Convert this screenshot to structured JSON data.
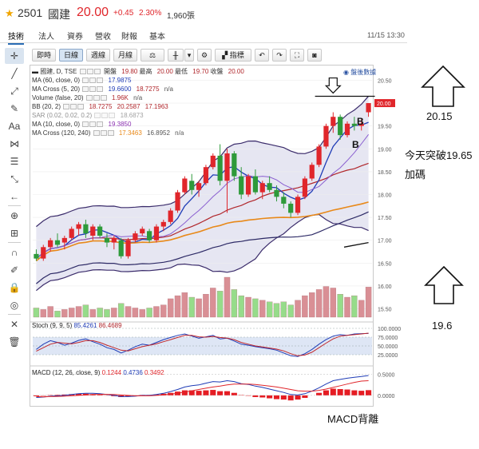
{
  "header": {
    "code": "2501",
    "name": "國建",
    "price": "20.00",
    "change": "+0.45",
    "change_pct": "2.30%",
    "volume": "1,960張"
  },
  "tabs": [
    {
      "label": "技術",
      "active": true
    },
    {
      "label": "法人",
      "active": false
    },
    {
      "label": "資券",
      "active": false
    },
    {
      "label": "營收",
      "active": false
    },
    {
      "label": "財報",
      "active": false
    },
    {
      "label": "基本",
      "active": false
    }
  ],
  "datetime": "11/15 13:30",
  "toolbar": {
    "realtime": "即時",
    "daily": "日線",
    "weekly": "週線",
    "monthly": "月線",
    "indicators": "指標"
  },
  "after_hours_label": "盤後數據",
  "legend": {
    "title": "國建, D, TSE",
    "ohlc": {
      "open_label": "開盤",
      "open": "19.80",
      "high_label": "最高",
      "high": "20.00",
      "low_label": "最低",
      "low": "19.70",
      "close_label": "收盤",
      "close": "20.00"
    },
    "ma60": {
      "label": "MA (60, close, 0)",
      "value": "17.9875"
    },
    "macross": {
      "label": "MA Cross (5, 20)",
      "v1": "19.6600",
      "v2": "18.7275",
      "v3": "n/a"
    },
    "volume": {
      "label": "Volume (false, 20)",
      "value": "1.96K",
      "v2": "n/a"
    },
    "bb": {
      "label": "BB (20, 2)",
      "v1": "18.7275",
      "v2": "20.2587",
      "v3": "17.1963"
    },
    "sar": {
      "label": "SAR (0.02, 0.02, 0.2)",
      "value": "18.6873"
    },
    "ma10": {
      "label": "MA (10, close, 0)",
      "value": "19.3850"
    },
    "macross2": {
      "label": "MA Cross (120, 240)",
      "v1": "17.3463",
      "v2": "16.8952",
      "v3": "n/a"
    }
  },
  "stoch_legend": {
    "label": "Stoch (9, 9, 5)",
    "v1": "85.4261",
    "v2": "86.4689"
  },
  "macd_legend": {
    "label": "MACD (12, 26, close, 9)",
    "v1": "0.1244",
    "v2": "0.4736",
    "v3": "0.3492"
  },
  "annotations": {
    "upper_target": "20.15",
    "breakout_note": "今天突破19.65",
    "add_position": "加碼",
    "lower_target": "19.6",
    "macd_divergence": "MACD背離",
    "b_mark": "B"
  },
  "colors": {
    "up": "#e0262b",
    "down": "#2e9a3a",
    "bb_fill": "#ddddee",
    "bb_line": "#3b2c6b",
    "ma_blue": "#1f3cb6",
    "ma_red": "#b0262b",
    "ma_orange": "#e8891a",
    "vol_up": "#d98f95",
    "vol_down": "#96dc8a"
  },
  "chart_data": {
    "type": "candlestick",
    "price_axis": {
      "ticks": [
        20.5,
        20.0,
        19.5,
        19.0,
        18.5,
        18.0,
        17.5,
        17.0,
        16.5,
        16.0,
        15.5
      ],
      "range": [
        15.3,
        20.7
      ]
    },
    "last_price_label": "20.00",
    "candles": [
      [
        16.7,
        16.8,
        16.55,
        16.6
      ],
      [
        16.6,
        16.9,
        16.55,
        16.85
      ],
      [
        16.85,
        17.05,
        16.75,
        17.0
      ],
      [
        17.0,
        17.15,
        16.85,
        16.9
      ],
      [
        16.95,
        17.1,
        16.8,
        17.05
      ],
      [
        17.05,
        17.3,
        17.0,
        17.25
      ],
      [
        17.25,
        17.4,
        17.1,
        17.35
      ],
      [
        17.35,
        17.45,
        17.05,
        17.15
      ],
      [
        17.1,
        17.35,
        17.0,
        17.3
      ],
      [
        17.3,
        17.35,
        17.05,
        17.1
      ],
      [
        17.05,
        17.15,
        16.85,
        16.95
      ],
      [
        16.95,
        17.1,
        16.8,
        17.05
      ],
      [
        17.0,
        17.05,
        16.6,
        16.65
      ],
      [
        16.65,
        17.05,
        16.6,
        17.0
      ],
      [
        17.0,
        17.2,
        16.95,
        17.15
      ],
      [
        17.15,
        17.3,
        17.1,
        17.25
      ],
      [
        17.2,
        17.25,
        16.95,
        17.0
      ],
      [
        17.0,
        17.35,
        16.95,
        17.3
      ],
      [
        17.3,
        17.45,
        17.2,
        17.4
      ],
      [
        17.4,
        17.7,
        17.35,
        17.65
      ],
      [
        17.65,
        18.1,
        17.6,
        18.05
      ],
      [
        18.05,
        18.4,
        18.0,
        18.35
      ],
      [
        18.3,
        18.45,
        18.0,
        18.1
      ],
      [
        18.1,
        18.3,
        17.95,
        18.25
      ],
      [
        18.25,
        18.65,
        18.2,
        18.6
      ],
      [
        18.6,
        18.9,
        18.55,
        18.85
      ],
      [
        18.85,
        19.1,
        18.2,
        18.3
      ],
      [
        18.3,
        19.0,
        17.6,
        18.9
      ],
      [
        18.9,
        18.95,
        18.3,
        18.4
      ],
      [
        18.4,
        18.6,
        17.9,
        18.0
      ],
      [
        18.0,
        18.45,
        17.95,
        18.4
      ],
      [
        18.4,
        18.55,
        18.0,
        18.05
      ],
      [
        18.05,
        18.3,
        17.9,
        18.25
      ],
      [
        18.25,
        18.4,
        18.05,
        18.1
      ],
      [
        18.1,
        18.2,
        17.85,
        17.95
      ],
      [
        17.95,
        18.05,
        17.7,
        17.8
      ],
      [
        17.8,
        17.85,
        17.5,
        17.6
      ],
      [
        17.6,
        18.0,
        17.55,
        17.95
      ],
      [
        17.95,
        18.4,
        17.9,
        18.35
      ],
      [
        18.35,
        18.7,
        18.3,
        18.65
      ],
      [
        18.65,
        19.1,
        18.6,
        19.05
      ],
      [
        19.05,
        19.55,
        19.0,
        19.5
      ],
      [
        19.5,
        19.8,
        19.35,
        19.7
      ],
      [
        19.7,
        19.75,
        19.2,
        19.3
      ],
      [
        19.3,
        19.6,
        19.25,
        19.55
      ],
      [
        19.55,
        19.7,
        19.4,
        19.5
      ],
      [
        19.5,
        19.65,
        19.4,
        19.55
      ],
      [
        19.8,
        20.0,
        19.7,
        20.0
      ]
    ],
    "volumes": [
      0.6,
      0.5,
      0.7,
      0.4,
      0.5,
      0.6,
      0.7,
      0.8,
      0.5,
      0.6,
      0.5,
      0.6,
      0.9,
      0.7,
      0.6,
      0.5,
      0.6,
      0.7,
      0.8,
      1.2,
      1.4,
      1.6,
      1.3,
      1.2,
      1.5,
      1.9,
      1.7,
      2.6,
      1.8,
      1.4,
      1.3,
      1.2,
      1.1,
      1.0,
      0.9,
      1.0,
      0.8,
      1.1,
      1.4,
      1.6,
      1.8,
      2.0,
      1.9,
      1.5,
      1.3,
      1.4,
      1.1,
      1.96
    ],
    "stoch_axis": {
      "ticks": [
        100,
        75,
        50,
        25
      ],
      "range": [
        0,
        100
      ]
    },
    "stoch_k": [
      40,
      55,
      65,
      60,
      52,
      58,
      66,
      70,
      62,
      55,
      45,
      40,
      30,
      38,
      48,
      55,
      52,
      60,
      68,
      74,
      80,
      84,
      78,
      72,
      76,
      80,
      70,
      72,
      64,
      55,
      52,
      48,
      45,
      42,
      38,
      30,
      22,
      20,
      28,
      40,
      55,
      68,
      78,
      82,
      80,
      84,
      85,
      85.43
    ],
    "stoch_d": [
      35,
      45,
      55,
      60,
      58,
      56,
      60,
      65,
      65,
      60,
      52,
      45,
      38,
      36,
      42,
      48,
      52,
      56,
      62,
      68,
      74,
      80,
      80,
      76,
      75,
      77,
      74,
      72,
      68,
      60,
      55,
      50,
      47,
      44,
      41,
      36,
      28,
      22,
      24,
      32,
      45,
      58,
      70,
      78,
      80,
      82,
      84,
      86.47
    ],
    "macd_axis": {
      "ticks": [
        0.5,
        0.0
      ],
      "range": [
        -0.25,
        0.55
      ]
    },
    "macd_dif": [
      -0.05,
      -0.04,
      -0.02,
      -0.01,
      0.0,
      0.02,
      0.04,
      0.05,
      0.05,
      0.04,
      0.02,
      0.0,
      -0.03,
      -0.03,
      -0.02,
      0.0,
      0.0,
      0.02,
      0.05,
      0.09,
      0.14,
      0.2,
      0.23,
      0.25,
      0.29,
      0.33,
      0.32,
      0.35,
      0.33,
      0.28,
      0.26,
      0.22,
      0.19,
      0.15,
      0.11,
      0.07,
      0.02,
      0.01,
      0.04,
      0.1,
      0.18,
      0.27,
      0.35,
      0.38,
      0.41,
      0.43,
      0.45,
      0.4736
    ],
    "macd_signal": [
      -0.03,
      -0.035,
      -0.03,
      -0.025,
      -0.02,
      -0.01,
      0.0,
      0.01,
      0.02,
      0.025,
      0.025,
      0.02,
      0.01,
      0.0,
      -0.01,
      -0.01,
      -0.01,
      0.0,
      0.01,
      0.03,
      0.05,
      0.08,
      0.11,
      0.14,
      0.17,
      0.2,
      0.22,
      0.25,
      0.27,
      0.27,
      0.27,
      0.26,
      0.24,
      0.22,
      0.2,
      0.17,
      0.14,
      0.11,
      0.1,
      0.1,
      0.12,
      0.15,
      0.19,
      0.23,
      0.27,
      0.31,
      0.34,
      0.3492
    ],
    "macd_hist": [
      -0.02,
      -0.01,
      0.01,
      0.015,
      0.02,
      0.03,
      0.04,
      0.04,
      0.03,
      0.015,
      -0.005,
      -0.02,
      -0.04,
      -0.03,
      -0.01,
      0.01,
      0.01,
      0.02,
      0.04,
      0.06,
      0.09,
      0.12,
      0.12,
      0.11,
      0.12,
      0.13,
      0.1,
      0.1,
      0.06,
      0.01,
      -0.01,
      -0.04,
      -0.05,
      -0.07,
      -0.09,
      -0.1,
      -0.12,
      -0.1,
      -0.06,
      0.0,
      0.06,
      0.12,
      0.16,
      0.15,
      0.14,
      0.12,
      0.11,
      0.1244
    ]
  }
}
